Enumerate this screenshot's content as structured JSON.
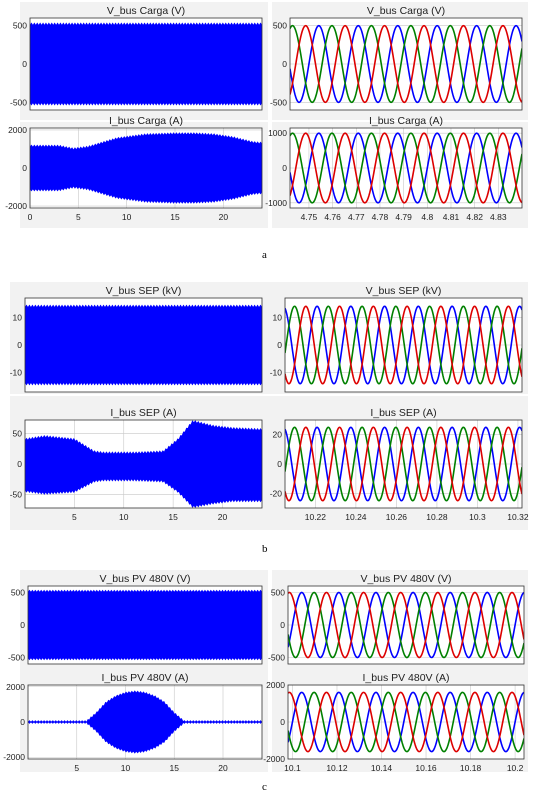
{
  "captions": [
    "a",
    "b",
    "c"
  ],
  "colors": {
    "envelope": "#0000ff",
    "phase_a": "#0000ff",
    "phase_b": "#008000",
    "phase_c": "#dd0000",
    "grid": "#c8c8c8",
    "frame": "#333333",
    "panel_bg": "#f2f2f2"
  },
  "chart_data": [
    {
      "id": "a-v-full",
      "type": "line",
      "style": "envelope",
      "title": "V_bus Carga (V)",
      "xlim": [
        0,
        24
      ],
      "ylim": [
        -600,
        600
      ],
      "yticks": [
        -500,
        0,
        500
      ],
      "xticks": [],
      "envelope": {
        "x": [
          0,
          24
        ],
        "upper": [
          520,
          520
        ],
        "lower": [
          -520,
          -520
        ]
      }
    },
    {
      "id": "a-v-zoom",
      "type": "line",
      "style": "sine3",
      "title": "V_bus Carga (V)",
      "xlim": [
        4.742,
        4.84
      ],
      "ylim": [
        -600,
        600
      ],
      "yticks": [
        -500,
        0,
        500
      ],
      "xticks": [],
      "amplitude": 500,
      "frequency": 60
    },
    {
      "id": "a-i-full",
      "type": "line",
      "style": "envelope",
      "title": "I_bus Carga (A)",
      "xlim": [
        0,
        24
      ],
      "ylim": [
        -2100,
        2100
      ],
      "yticks": [
        -2000,
        0,
        2000
      ],
      "xticks": [
        0,
        5,
        10,
        15,
        20
      ],
      "envelope": {
        "x": [
          0,
          3,
          4.5,
          6,
          9,
          12,
          15,
          17,
          19,
          21,
          23,
          24
        ],
        "upper": [
          1150,
          1150,
          1000,
          1100,
          1550,
          1750,
          1800,
          1800,
          1750,
          1600,
          1350,
          1300
        ],
        "lower": [
          -1150,
          -1150,
          -1000,
          -1100,
          -1550,
          -1750,
          -1800,
          -1800,
          -1750,
          -1600,
          -1350,
          -1300
        ]
      }
    },
    {
      "id": "a-i-zoom",
      "type": "line",
      "style": "sine3",
      "title": "I_bus Carga (A)",
      "xlim": [
        4.742,
        4.84
      ],
      "ylim": [
        -1150,
        1150
      ],
      "yticks": [
        -1000,
        0,
        1000
      ],
      "xticks": [
        4.75,
        4.76,
        4.77,
        4.78,
        4.79,
        4.8,
        4.81,
        4.82,
        4.83
      ],
      "amplitude": 1000,
      "frequency": 60
    },
    {
      "id": "b-v-full",
      "type": "line",
      "style": "envelope",
      "title": "V_bus SEP (kV)",
      "xlim": [
        0,
        24
      ],
      "ylim": [
        -17,
        17
      ],
      "yticks": [
        -10,
        0,
        10
      ],
      "xticks": [],
      "envelope": {
        "x": [
          0,
          24
        ],
        "upper": [
          14,
          14
        ],
        "lower": [
          -14,
          -14
        ]
      }
    },
    {
      "id": "b-v-zoom",
      "type": "line",
      "style": "sine3",
      "title": "V_bus SEP (kV)",
      "xlim": [
        10.205,
        10.322
      ],
      "ylim": [
        -17,
        17
      ],
      "yticks": [
        -10,
        0,
        10
      ],
      "xticks": [],
      "amplitude": 14,
      "frequency": 60
    },
    {
      "id": "b-i-full",
      "type": "line",
      "style": "envelope",
      "title": "I_bus SEP (A)",
      "xlim": [
        0,
        24
      ],
      "ylim": [
        -72,
        72
      ],
      "yticks": [
        -50,
        0,
        50
      ],
      "xticks": [
        5,
        10,
        15,
        20
      ],
      "envelope": {
        "x": [
          0,
          2,
          5,
          7,
          8,
          11,
          14,
          15.5,
          17,
          19,
          21,
          24
        ],
        "upper": [
          40,
          45,
          40,
          20,
          18,
          18,
          20,
          40,
          70,
          62,
          58,
          56
        ],
        "lower": [
          -44,
          -48,
          -45,
          -28,
          -26,
          -26,
          -28,
          -45,
          -70,
          -64,
          -60,
          -60
        ]
      }
    },
    {
      "id": "b-i-zoom",
      "type": "line",
      "style": "sine3",
      "title": "I_bus SEP (A)",
      "xlim": [
        10.205,
        10.322
      ],
      "ylim": [
        -30,
        30
      ],
      "yticks": [
        -20,
        0,
        20
      ],
      "xticks": [
        10.22,
        10.24,
        10.26,
        10.28,
        10.3,
        10.32
      ],
      "amplitude": 25,
      "frequency": 60
    },
    {
      "id": "c-v-full",
      "type": "line",
      "style": "envelope",
      "title": "V_bus PV 480V (V)",
      "xlim": [
        0,
        24
      ],
      "ylim": [
        -600,
        600
      ],
      "yticks": [
        -500,
        0,
        500
      ],
      "xticks": [],
      "envelope": {
        "x": [
          0,
          24
        ],
        "upper": [
          520,
          520
        ],
        "lower": [
          -520,
          -520
        ]
      }
    },
    {
      "id": "c-v-zoom",
      "type": "line",
      "style": "sine3",
      "title": "V_bus PV 480V (V)",
      "xlim": [
        10.098,
        10.204
      ],
      "ylim": [
        -600,
        600
      ],
      "yticks": [
        -500,
        0,
        500
      ],
      "xticks": [],
      "amplitude": 500,
      "frequency": 60
    },
    {
      "id": "c-i-full",
      "type": "line",
      "style": "envelope",
      "title": "I_bus PV 480V (A)",
      "xlim": [
        0,
        24
      ],
      "ylim": [
        -2100,
        2100
      ],
      "yticks": [
        -2000,
        0,
        2000
      ],
      "xticks": [
        5,
        10,
        15,
        20
      ],
      "envelope": {
        "x": [
          0,
          6,
          7,
          8,
          9,
          10,
          11,
          12,
          13,
          14,
          15,
          16,
          24
        ],
        "upper": [
          30,
          30,
          500,
          1100,
          1450,
          1650,
          1720,
          1650,
          1450,
          1100,
          500,
          30,
          30
        ],
        "lower": [
          -30,
          -30,
          -500,
          -1100,
          -1450,
          -1650,
          -1720,
          -1650,
          -1450,
          -1100,
          -500,
          -30,
          -30
        ]
      }
    },
    {
      "id": "c-i-zoom",
      "type": "line",
      "style": "sine3",
      "title": "I_bus PV 480V (A)",
      "xlim": [
        10.098,
        10.204
      ],
      "ylim": [
        -2000,
        2000
      ],
      "yticks": [
        -2000,
        0,
        2000
      ],
      "xticks": [
        10.1,
        10.12,
        10.14,
        10.16,
        10.18,
        10.2
      ],
      "amplitude": 1600,
      "frequency": 60
    }
  ]
}
